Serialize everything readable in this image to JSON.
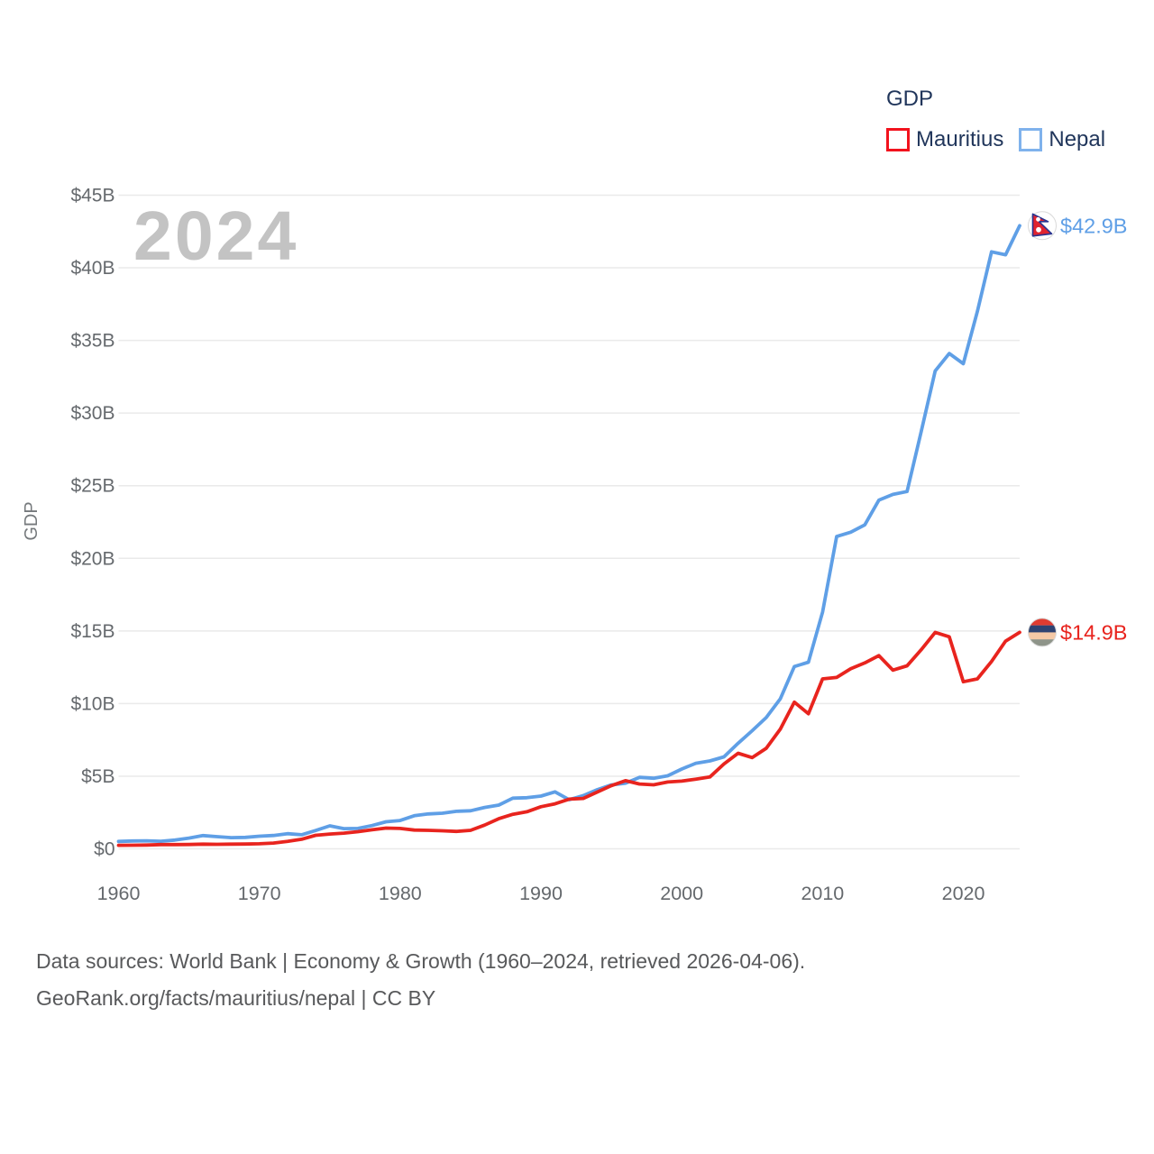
{
  "watermark": "2024",
  "legend": {
    "title": "GDP",
    "items": [
      {
        "label": "Mauritius",
        "swatch_color": "#f2121d"
      },
      {
        "label": "Nepal",
        "swatch_color": "#7fb2ec"
      }
    ]
  },
  "y_axis": {
    "title": "GDP",
    "ticks": [
      {
        "value": 0,
        "label": "$0"
      },
      {
        "value": 5,
        "label": "$5B"
      },
      {
        "value": 10,
        "label": "$10B"
      },
      {
        "value": 15,
        "label": "$15B"
      },
      {
        "value": 20,
        "label": "$20B"
      },
      {
        "value": 25,
        "label": "$25B"
      },
      {
        "value": 30,
        "label": "$30B"
      },
      {
        "value": 35,
        "label": "$35B"
      },
      {
        "value": 40,
        "label": "$40B"
      },
      {
        "value": 45,
        "label": "$45B"
      }
    ]
  },
  "x_axis": {
    "ticks": [
      {
        "value": 1960,
        "label": "1960"
      },
      {
        "value": 1970,
        "label": "1970"
      },
      {
        "value": 1980,
        "label": "1980"
      },
      {
        "value": 1990,
        "label": "1990"
      },
      {
        "value": 2000,
        "label": "2000"
      },
      {
        "value": 2010,
        "label": "2010"
      },
      {
        "value": 2020,
        "label": "2020"
      }
    ]
  },
  "chart_data": {
    "type": "line",
    "title": "GDP",
    "unit": "billions of USD",
    "xlabel": "",
    "ylabel": "GDP",
    "xlim": [
      1960,
      2024
    ],
    "ylim": [
      0,
      45
    ],
    "grid": "horizontal",
    "legend_position": "top-right",
    "x": [
      1960,
      1961,
      1962,
      1963,
      1964,
      1965,
      1966,
      1967,
      1968,
      1969,
      1970,
      1971,
      1972,
      1973,
      1974,
      1975,
      1976,
      1977,
      1978,
      1979,
      1980,
      1981,
      1982,
      1983,
      1984,
      1985,
      1986,
      1987,
      1988,
      1989,
      1990,
      1991,
      1992,
      1993,
      1994,
      1995,
      1996,
      1997,
      1998,
      1999,
      2000,
      2001,
      2002,
      2003,
      2004,
      2005,
      2006,
      2007,
      2008,
      2009,
      2010,
      2011,
      2012,
      2013,
      2014,
      2015,
      2016,
      2017,
      2018,
      2019,
      2020,
      2021,
      2022,
      2023,
      2024
    ],
    "series": [
      {
        "name": "Nepal",
        "color": "#5f9fe6",
        "end_label": "$42.9B",
        "flag": "nepal",
        "values": [
          0.51,
          0.54,
          0.55,
          0.52,
          0.6,
          0.74,
          0.91,
          0.84,
          0.77,
          0.79,
          0.87,
          0.92,
          1.04,
          0.97,
          1.26,
          1.58,
          1.39,
          1.4,
          1.6,
          1.86,
          1.95,
          2.28,
          2.4,
          2.45,
          2.58,
          2.62,
          2.85,
          3.01,
          3.49,
          3.52,
          3.63,
          3.92,
          3.38,
          3.66,
          4.07,
          4.4,
          4.52,
          4.92,
          4.86,
          5.03,
          5.49,
          5.89,
          6.05,
          6.33,
          7.27,
          8.13,
          9.04,
          10.33,
          12.55,
          12.85,
          16.3,
          21.5,
          21.8,
          22.3,
          24.0,
          24.4,
          24.6,
          28.7,
          32.9,
          34.1,
          33.4,
          37.0,
          41.1,
          40.9,
          42.9
        ]
      },
      {
        "name": "Mauritius",
        "color": "#e8241e",
        "end_label": "$14.9B",
        "flag": "mauritius",
        "values": [
          0.24,
          0.25,
          0.26,
          0.29,
          0.29,
          0.3,
          0.32,
          0.31,
          0.32,
          0.33,
          0.35,
          0.4,
          0.51,
          0.66,
          0.93,
          1.02,
          1.08,
          1.18,
          1.31,
          1.43,
          1.4,
          1.29,
          1.27,
          1.24,
          1.2,
          1.27,
          1.63,
          2.07,
          2.38,
          2.55,
          2.9,
          3.1,
          3.42,
          3.47,
          3.91,
          4.35,
          4.69,
          4.46,
          4.41,
          4.6,
          4.66,
          4.8,
          4.95,
          5.84,
          6.58,
          6.28,
          6.92,
          8.24,
          10.1,
          9.3,
          11.7,
          11.8,
          12.4,
          12.8,
          13.3,
          12.3,
          12.6,
          13.7,
          14.9,
          14.6,
          11.5,
          11.7,
          12.9,
          14.3,
          14.9
        ]
      }
    ]
  },
  "icons": {
    "nepal_flag_icon": {
      "pennant": "#e0242f",
      "border": "#27338f",
      "symbols": "#ffffff",
      "background": "#ffffff",
      "rim": "#d9d9d9"
    },
    "mauritius_flag_icon": {
      "stripes": [
        "#e03c31",
        "#2e4372",
        "#f5c9a6",
        "#8e9489"
      ],
      "rim": "#d9d9d9"
    }
  },
  "colors": {
    "grid": "#eaeaea",
    "tick_text": "#65696d",
    "axis_title_text": "#75797c",
    "legend_text": "#21365b",
    "watermark": "#c3c3c3",
    "footer_text": "#58595b"
  },
  "footer": {
    "source_line": "Data sources: World Bank | Economy & Growth (1960–2024, retrieved 2026-04-06).",
    "attribution_line": "GeoRank.org/facts/mauritius/nepal | CC BY"
  }
}
